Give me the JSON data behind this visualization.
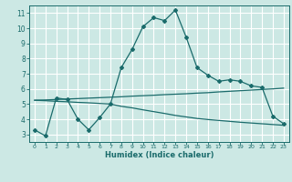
{
  "background_color": "#cce8e4",
  "grid_color": "#ffffff",
  "line_color": "#1a6b6b",
  "xlabel": "Humidex (Indice chaleur)",
  "xlim": [
    -0.5,
    23.5
  ],
  "ylim": [
    2.5,
    11.5
  ],
  "yticks": [
    3,
    4,
    5,
    6,
    7,
    8,
    9,
    10,
    11
  ],
  "xticks": [
    0,
    1,
    2,
    3,
    4,
    5,
    6,
    7,
    8,
    9,
    10,
    11,
    12,
    13,
    14,
    15,
    16,
    17,
    18,
    19,
    20,
    21,
    22,
    23
  ],
  "line1_x": [
    0,
    1,
    2,
    3,
    4,
    5,
    6,
    7,
    8,
    9,
    10,
    11,
    12,
    13,
    14,
    15,
    16,
    17,
    18,
    19,
    20,
    21,
    22,
    23
  ],
  "line1_y": [
    3.3,
    2.9,
    5.4,
    5.3,
    4.0,
    3.3,
    4.1,
    5.0,
    7.4,
    8.6,
    10.1,
    10.7,
    10.5,
    11.2,
    9.4,
    7.4,
    6.9,
    6.5,
    6.6,
    6.5,
    6.2,
    6.1,
    4.2,
    3.7
  ],
  "line2_x": [
    0,
    1,
    2,
    3,
    4,
    5,
    6,
    7,
    8,
    9,
    10,
    11,
    12,
    13,
    14,
    15,
    16,
    17,
    18,
    19,
    20,
    21,
    22,
    23
  ],
  "line2_y": [
    5.25,
    5.27,
    5.3,
    5.33,
    5.36,
    5.39,
    5.42,
    5.45,
    5.48,
    5.52,
    5.55,
    5.58,
    5.62,
    5.65,
    5.68,
    5.72,
    5.75,
    5.8,
    5.84,
    5.88,
    5.92,
    5.96,
    6.0,
    6.05
  ],
  "line3_x": [
    0,
    1,
    2,
    3,
    4,
    5,
    6,
    7,
    8,
    9,
    10,
    11,
    12,
    13,
    14,
    15,
    16,
    17,
    18,
    19,
    20,
    21,
    22,
    23
  ],
  "line3_y": [
    5.25,
    5.22,
    5.18,
    5.15,
    5.11,
    5.08,
    5.04,
    5.0,
    4.85,
    4.75,
    4.62,
    4.5,
    4.38,
    4.25,
    4.15,
    4.05,
    3.98,
    3.92,
    3.86,
    3.8,
    3.75,
    3.7,
    3.65,
    3.6
  ]
}
